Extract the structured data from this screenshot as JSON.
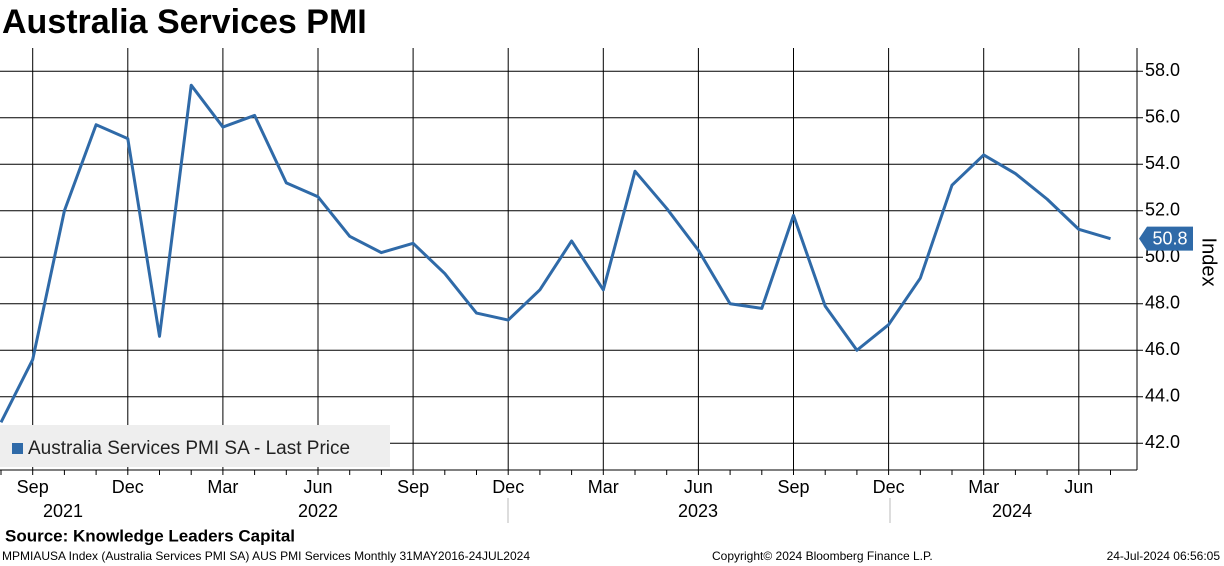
{
  "chart_data": {
    "type": "line",
    "title": "Australia Services PMI",
    "categories": [
      null,
      "Sep",
      null,
      null,
      "Dec",
      null,
      null,
      "Mar",
      null,
      null,
      "Jun",
      null,
      null,
      "Sep",
      null,
      null,
      "Dec",
      null,
      null,
      "Mar",
      null,
      null,
      "Jun",
      null,
      null,
      "Sep",
      null,
      null,
      "Dec",
      null,
      null,
      "Mar",
      null,
      null,
      "Jun",
      null
    ],
    "x_group_labels": [
      "2021",
      "2022",
      "2023",
      "2024"
    ],
    "series": [
      {
        "name": "Australia Services PMI SA - Last Price",
        "color": "#2f6aa8",
        "values": [
          42.9,
          45.6,
          52.0,
          55.7,
          55.1,
          46.6,
          57.4,
          55.6,
          56.1,
          53.2,
          52.6,
          50.9,
          50.2,
          50.6,
          49.3,
          47.6,
          47.3,
          48.6,
          50.7,
          48.6,
          53.7,
          52.1,
          50.3,
          48.0,
          47.8,
          51.8,
          47.9,
          46.0,
          47.1,
          49.1,
          53.1,
          54.4,
          53.6,
          52.5,
          51.2,
          50.8
        ]
      }
    ],
    "ylim": [
      40.85,
      59
    ],
    "yticks": [
      {
        "value": 42,
        "label": "42.0"
      },
      {
        "value": 44,
        "label": "44.0"
      },
      {
        "value": 46,
        "label": "46.0"
      },
      {
        "value": 48,
        "label": "48.0"
      },
      {
        "value": 50,
        "label": "50.0"
      },
      {
        "value": 52,
        "label": "52.0"
      },
      {
        "value": 54,
        "label": "54.0"
      },
      {
        "value": 56,
        "label": "56.0"
      },
      {
        "value": 58,
        "label": "58.0"
      }
    ],
    "y_label": "Index",
    "grid": true,
    "legend": "lower left",
    "source": "Source: Knowledge Leaders Capital",
    "footer_left": "MPMIAUSA Index (Australia Services PMI SA) AUS PMI Services  Monthly 31MAY2016-24JUL2024",
    "copyright": "Copyright© 2024 Bloomberg Finance L.P.",
    "timestamp": "24-Jul-2024 06:56:05"
  }
}
